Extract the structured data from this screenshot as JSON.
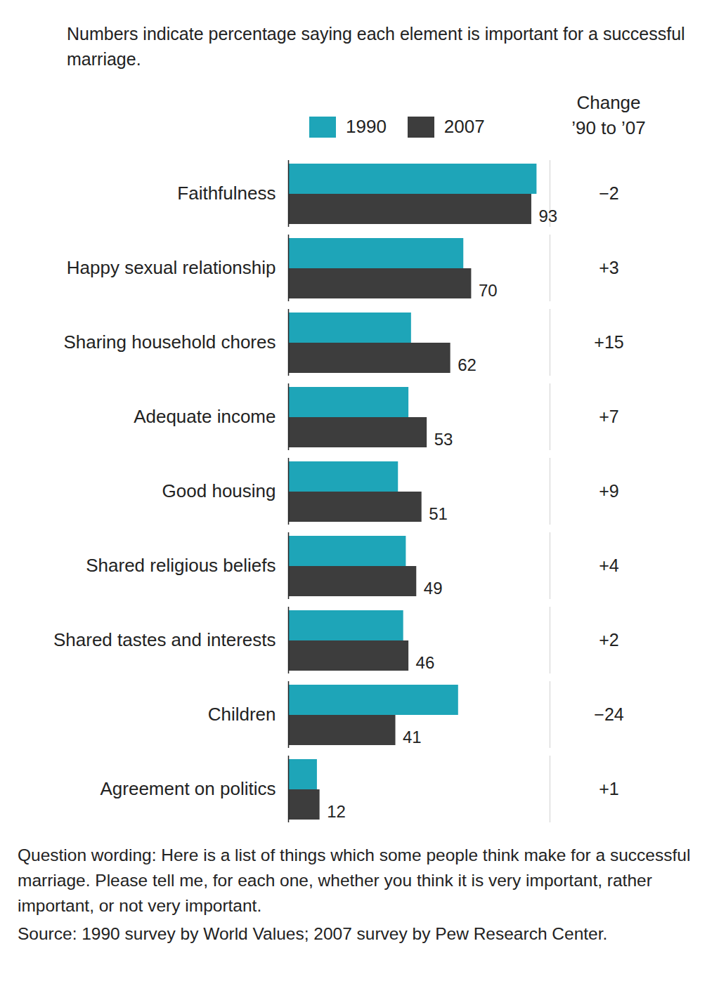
{
  "chart_data": {
    "type": "bar",
    "orientation": "horizontal",
    "subtitle": "Numbers indicate percentage saying each element is important for a successful marriage.",
    "categories": [
      "Faithfulness",
      "Happy sexual relationship",
      "Sharing household chores",
      "Adequate income",
      "Good housing",
      "Shared religious beliefs",
      "Shared tastes and interests",
      "Children",
      "Agreement on politics"
    ],
    "series": [
      {
        "name": "1990",
        "color": "#1ea5b8",
        "values": [
          95,
          67,
          47,
          46,
          42,
          45,
          44,
          65,
          11
        ],
        "data_labels": false
      },
      {
        "name": "2007",
        "color": "#3d3d3d",
        "values": [
          93,
          70,
          62,
          53,
          51,
          49,
          46,
          41,
          12
        ],
        "data_labels": true
      }
    ],
    "change": {
      "title": "Change ’90 to ’07",
      "values": [
        -2,
        3,
        15,
        7,
        9,
        4,
        2,
        -24,
        1
      ],
      "value_labels": [
        "−2",
        "+3",
        "+15",
        "+7",
        "+9",
        "+4",
        "+2",
        "−24",
        "+1"
      ]
    },
    "xlim": [
      0,
      100
    ],
    "xticks": [],
    "tick_labels": "y",
    "grid": false,
    "legend": "top",
    "notes": [
      "Question wording: Here is a list of things which some people think make for a successful marriage. Please tell me, for each one, whether you think it is very important, rather important, or not very important.",
      "Source: 1990 survey by World Values; 2007 survey by Pew Research Center."
    ]
  }
}
